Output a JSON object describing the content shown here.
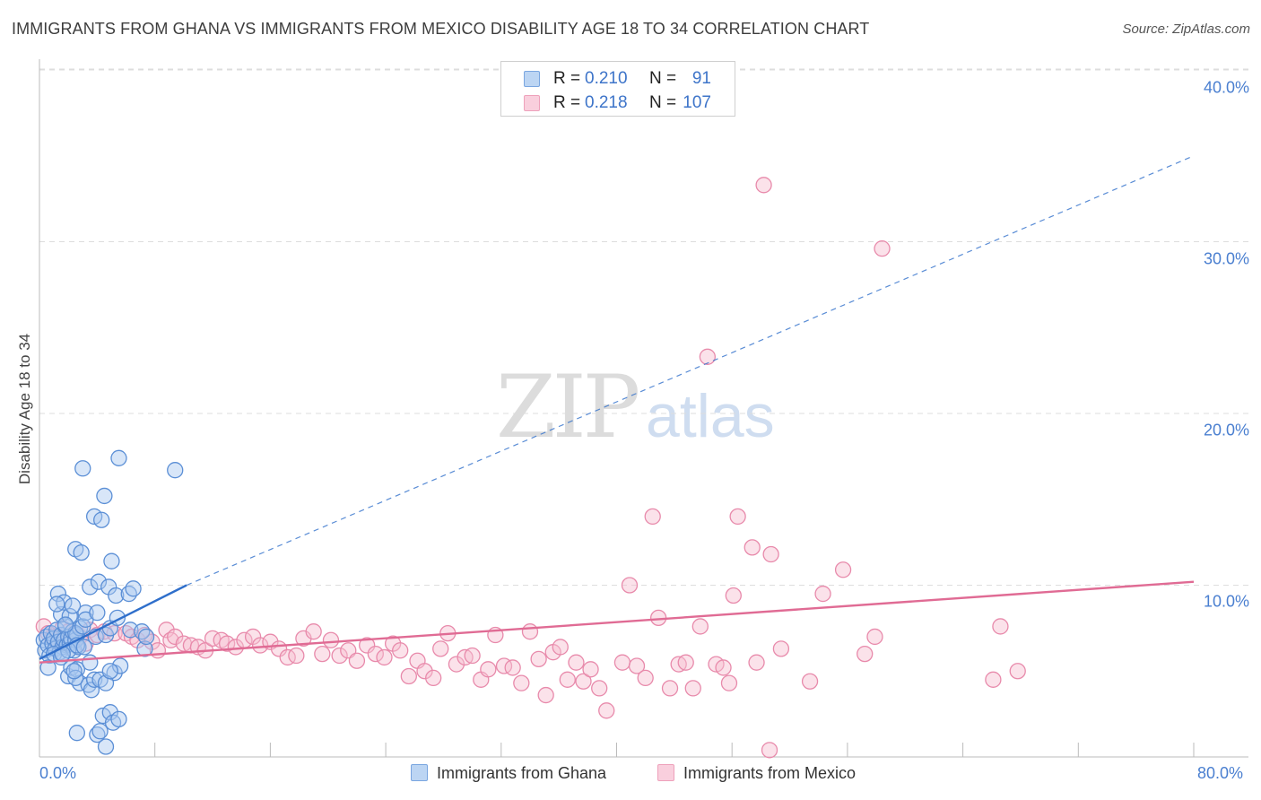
{
  "title": "IMMIGRANTS FROM GHANA VS IMMIGRANTS FROM MEXICO DISABILITY AGE 18 TO 34 CORRELATION CHART",
  "source": "Source: ZipAtlas.com",
  "watermark": {
    "zip": "ZIP",
    "atlas": "atlas"
  },
  "legend": {
    "r_label": "R =",
    "n_label": "N =",
    "ghana": {
      "r": "0.210",
      "n": "91"
    },
    "mexico": {
      "r": "0.218",
      "n": "107"
    }
  },
  "colors": {
    "ghana_fill": "#a9c8f0",
    "ghana_stroke": "#5b8fd6",
    "ghana_line": "#2f6fcb",
    "mexico_fill": "#f6bfd1",
    "mexico_stroke": "#e88aab",
    "mexico_line": "#e06b94",
    "tick_text": "#4a7fd0",
    "grid": "#dddddd"
  },
  "chart_data": {
    "type": "scatter",
    "title": "IMMIGRANTS FROM GHANA VS IMMIGRANTS FROM MEXICO DISABILITY AGE 18 TO 34 CORRELATION CHART",
    "xlabel": "",
    "ylabel": "Disability Age 18 to 34",
    "xlim": [
      0,
      80
    ],
    "ylim": [
      0,
      40
    ],
    "x_tick_labels": [
      "0.0%",
      "80.0%"
    ],
    "y_ticks": [
      10,
      20,
      30,
      40
    ],
    "y_tick_labels": [
      "10.0%",
      "20.0%",
      "30.0%",
      "40.0%"
    ],
    "grid": true,
    "legend_position": "top-center",
    "series": [
      {
        "name": "Immigrants from Ghana",
        "r": 0.21,
        "n": 91,
        "trend_solid": [
          [
            0,
            5.7
          ],
          [
            10.2,
            10.0
          ]
        ],
        "trend_dashed": [
          [
            10.2,
            10.0
          ],
          [
            80,
            35.0
          ]
        ],
        "points": [
          [
            0.3,
            6.8
          ],
          [
            0.4,
            6.2
          ],
          [
            0.5,
            7.0
          ],
          [
            0.6,
            6.5
          ],
          [
            0.7,
            5.9
          ],
          [
            0.8,
            7.2
          ],
          [
            0.9,
            6.6
          ],
          [
            1.0,
            6.9
          ],
          [
            1.1,
            6.3
          ],
          [
            1.2,
            7.4
          ],
          [
            1.3,
            6.7
          ],
          [
            1.4,
            6.1
          ],
          [
            1.5,
            7.1
          ],
          [
            1.6,
            6.4
          ],
          [
            1.7,
            6.8
          ],
          [
            1.8,
            7.6
          ],
          [
            1.9,
            6.5
          ],
          [
            2.0,
            7.0
          ],
          [
            2.1,
            6.6
          ],
          [
            2.2,
            6.9
          ],
          [
            2.3,
            7.3
          ],
          [
            2.4,
            6.2
          ],
          [
            2.5,
            6.8
          ],
          [
            2.6,
            7.1
          ],
          [
            2.7,
            6.4
          ],
          [
            2.8,
            7.5
          ],
          [
            0.6,
            5.2
          ],
          [
            1.0,
            6.0
          ],
          [
            1.5,
            5.8
          ],
          [
            2.0,
            6.2
          ],
          [
            1.3,
            9.5
          ],
          [
            1.5,
            8.3
          ],
          [
            1.7,
            9.0
          ],
          [
            2.1,
            8.2
          ],
          [
            2.5,
            7.2
          ],
          [
            3.0,
            7.6
          ],
          [
            3.2,
            8.4
          ],
          [
            2.6,
            6.5
          ],
          [
            1.8,
            7.7
          ],
          [
            1.2,
            8.9
          ],
          [
            2.3,
            8.8
          ],
          [
            2.5,
            12.1
          ],
          [
            2.9,
            11.9
          ],
          [
            3.0,
            16.8
          ],
          [
            3.2,
            8.0
          ],
          [
            3.5,
            9.9
          ],
          [
            3.8,
            14.0
          ],
          [
            3.9,
            7.0
          ],
          [
            4.0,
            8.4
          ],
          [
            4.1,
            10.2
          ],
          [
            4.3,
            13.8
          ],
          [
            4.5,
            15.2
          ],
          [
            4.6,
            7.1
          ],
          [
            4.8,
            9.9
          ],
          [
            4.9,
            7.5
          ],
          [
            5.0,
            11.4
          ],
          [
            5.2,
            4.9
          ],
          [
            5.3,
            9.4
          ],
          [
            5.4,
            8.1
          ],
          [
            5.5,
            17.4
          ],
          [
            5.6,
            5.3
          ],
          [
            6.2,
            9.5
          ],
          [
            6.3,
            7.4
          ],
          [
            6.5,
            9.8
          ],
          [
            7.1,
            7.3
          ],
          [
            7.3,
            6.3
          ],
          [
            7.4,
            7.0
          ],
          [
            9.4,
            16.7
          ],
          [
            2.0,
            4.7
          ],
          [
            2.2,
            5.2
          ],
          [
            2.6,
            5.1
          ],
          [
            2.8,
            4.3
          ],
          [
            3.1,
            6.4
          ],
          [
            3.4,
            4.2
          ],
          [
            3.6,
            3.9
          ],
          [
            3.8,
            4.5
          ],
          [
            4.2,
            4.5
          ],
          [
            4.6,
            4.3
          ],
          [
            4.9,
            5.0
          ],
          [
            2.5,
            4.6
          ],
          [
            3.5,
            5.5
          ],
          [
            4.4,
            2.4
          ],
          [
            4.9,
            2.6
          ],
          [
            5.1,
            2.0
          ],
          [
            5.5,
            2.2
          ],
          [
            2.6,
            1.4
          ],
          [
            4.0,
            1.3
          ],
          [
            4.2,
            1.5
          ],
          [
            4.6,
            0.6
          ],
          [
            1.6,
            6.0
          ],
          [
            2.4,
            5.0
          ]
        ]
      },
      {
        "name": "Immigrants from Mexico",
        "r": 0.218,
        "n": 107,
        "trend_solid": [
          [
            0,
            5.5
          ],
          [
            80,
            10.2
          ]
        ],
        "points": [
          [
            0.3,
            7.6
          ],
          [
            0.6,
            7.2
          ],
          [
            0.9,
            7.0
          ],
          [
            1.2,
            6.8
          ],
          [
            1.6,
            7.5
          ],
          [
            2.0,
            7.3
          ],
          [
            2.4,
            6.9
          ],
          [
            2.8,
            7.0
          ],
          [
            3.2,
            6.6
          ],
          [
            3.5,
            7.4
          ],
          [
            4.0,
            7.1
          ],
          [
            4.5,
            7.3
          ],
          [
            5.2,
            7.2
          ],
          [
            6.0,
            7.2
          ],
          [
            6.4,
            7.0
          ],
          [
            6.8,
            6.8
          ],
          [
            7.3,
            7.1
          ],
          [
            7.8,
            6.7
          ],
          [
            8.2,
            6.2
          ],
          [
            8.8,
            7.4
          ],
          [
            9.1,
            6.8
          ],
          [
            9.4,
            7.0
          ],
          [
            10.0,
            6.6
          ],
          [
            10.5,
            6.5
          ],
          [
            11.0,
            6.4
          ],
          [
            11.5,
            6.2
          ],
          [
            12.0,
            6.9
          ],
          [
            12.6,
            6.8
          ],
          [
            13.0,
            6.6
          ],
          [
            13.6,
            6.4
          ],
          [
            14.2,
            6.8
          ],
          [
            14.8,
            7.0
          ],
          [
            15.3,
            6.5
          ],
          [
            16.0,
            6.7
          ],
          [
            16.6,
            6.3
          ],
          [
            17.2,
            5.8
          ],
          [
            17.8,
            5.9
          ],
          [
            18.3,
            6.9
          ],
          [
            19.0,
            7.3
          ],
          [
            19.6,
            6.0
          ],
          [
            20.2,
            6.8
          ],
          [
            20.8,
            5.9
          ],
          [
            21.4,
            6.2
          ],
          [
            22.0,
            5.6
          ],
          [
            22.7,
            6.5
          ],
          [
            23.3,
            6.0
          ],
          [
            23.9,
            5.8
          ],
          [
            24.5,
            6.6
          ],
          [
            25.0,
            6.2
          ],
          [
            25.6,
            4.7
          ],
          [
            26.2,
            5.6
          ],
          [
            26.7,
            5.0
          ],
          [
            27.3,
            4.6
          ],
          [
            27.8,
            6.3
          ],
          [
            28.3,
            7.2
          ],
          [
            28.9,
            5.4
          ],
          [
            29.5,
            5.8
          ],
          [
            30.0,
            5.9
          ],
          [
            30.6,
            4.5
          ],
          [
            31.1,
            5.1
          ],
          [
            31.6,
            7.1
          ],
          [
            32.2,
            5.3
          ],
          [
            32.8,
            5.2
          ],
          [
            33.4,
            4.3
          ],
          [
            34.0,
            7.3
          ],
          [
            34.6,
            5.7
          ],
          [
            35.1,
            3.6
          ],
          [
            35.6,
            6.1
          ],
          [
            36.1,
            6.4
          ],
          [
            36.6,
            4.5
          ],
          [
            37.2,
            5.5
          ],
          [
            37.7,
            4.4
          ],
          [
            38.2,
            5.1
          ],
          [
            38.8,
            4.0
          ],
          [
            39.3,
            2.7
          ],
          [
            40.4,
            5.5
          ],
          [
            40.9,
            10.0
          ],
          [
            41.4,
            5.3
          ],
          [
            42.0,
            4.6
          ],
          [
            42.5,
            14.0
          ],
          [
            42.9,
            8.1
          ],
          [
            43.7,
            4.0
          ],
          [
            44.3,
            5.4
          ],
          [
            44.8,
            5.5
          ],
          [
            45.3,
            4.0
          ],
          [
            45.8,
            7.6
          ],
          [
            46.3,
            23.3
          ],
          [
            46.9,
            5.4
          ],
          [
            47.4,
            5.2
          ],
          [
            47.8,
            4.3
          ],
          [
            48.1,
            9.4
          ],
          [
            48.4,
            14.0
          ],
          [
            49.4,
            12.2
          ],
          [
            49.7,
            5.5
          ],
          [
            50.2,
            33.3
          ],
          [
            50.7,
            11.8
          ],
          [
            51.4,
            6.3
          ],
          [
            53.4,
            4.4
          ],
          [
            54.3,
            9.5
          ],
          [
            55.7,
            10.9
          ],
          [
            57.2,
            6.0
          ],
          [
            57.9,
            7.0
          ],
          [
            58.4,
            29.6
          ],
          [
            66.1,
            4.5
          ],
          [
            67.8,
            5.0
          ],
          [
            66.6,
            7.6
          ],
          [
            50.6,
            0.4
          ]
        ]
      }
    ]
  },
  "bottom_legend": {
    "ghana": "Immigrants from Ghana",
    "mexico": "Immigrants from Mexico"
  }
}
